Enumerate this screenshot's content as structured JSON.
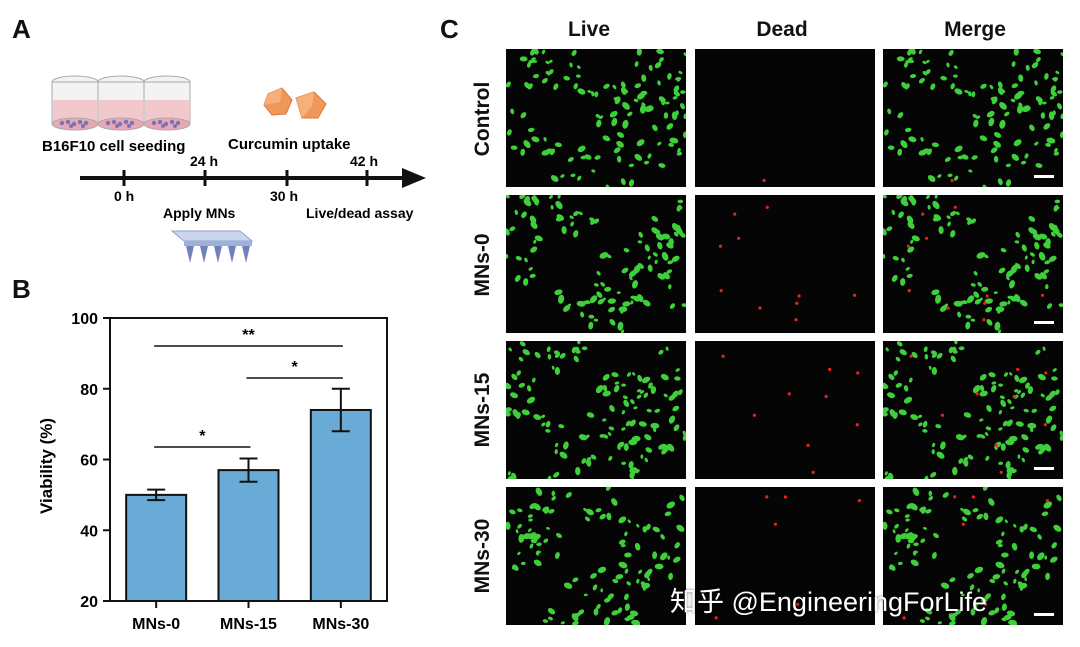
{
  "panel_a": {
    "letter": "A",
    "cell_seeding_label": "B16F10 cell seeding",
    "curcumin_label": "Curcumin uptake",
    "times": [
      "0 h",
      "24 h",
      "30 h",
      "42 h"
    ],
    "apply_label": "Apply MNs",
    "assay_label": "Live/dead assay"
  },
  "panel_b": {
    "letter": "B",
    "chart_data": {
      "type": "bar",
      "categories": [
        "MNs-0",
        "MNs-15",
        "MNs-30"
      ],
      "values": [
        50,
        57,
        74
      ],
      "errors": [
        1.5,
        3.3,
        6
      ],
      "ylabel": "Viability (%)",
      "ylim": [
        20,
        100
      ],
      "yticks": [
        "20",
        "40",
        "60",
        "80",
        "100"
      ],
      "significance": [
        {
          "from": 0,
          "to": 1,
          "label": "*"
        },
        {
          "from": 1,
          "to": 2,
          "label": "*"
        },
        {
          "from": 0,
          "to": 2,
          "label": "**"
        }
      ],
      "bar_color": "#6aaad6",
      "grid": false
    }
  },
  "panel_c": {
    "letter": "C",
    "columns": [
      "Live",
      "Dead",
      "Merge"
    ],
    "rows": [
      "Control",
      "MNs-0",
      "MNs-15",
      "MNs-30"
    ],
    "live_color": "#3fcf3a",
    "dead_color": "#e8231f"
  },
  "watermark": "知乎 @EngineeringForLife"
}
